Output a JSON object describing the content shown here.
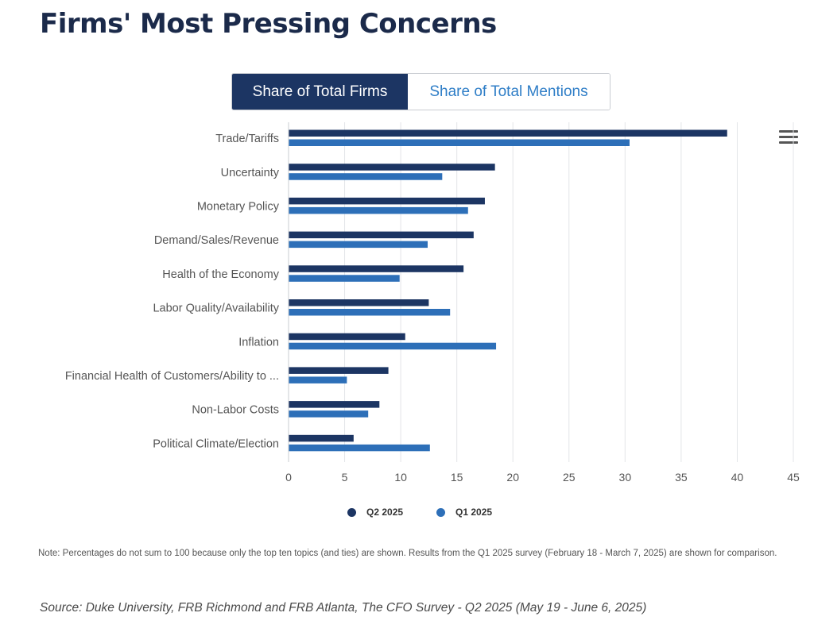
{
  "title": "Firms' Most Pressing Concerns",
  "toggle": {
    "active_label": "Share of Total Firms",
    "inactive_label": "Share of Total Mentions"
  },
  "menu": {
    "icon": "hamburger-menu-icon"
  },
  "colors": {
    "q2": "#1c3563",
    "q1": "#2d6fb8",
    "title": "#1b2a4a",
    "toggle_active": "#1c3563",
    "toggle_link": "#2f7ec7"
  },
  "legend": [
    {
      "label": "Q2 2025",
      "color": "#1c3563"
    },
    {
      "label": "Q1 2025",
      "color": "#2d6fb8"
    }
  ],
  "note": "Note: Percentages do not sum to 100 because only the top ten topics (and ties) are shown. Results from the Q1 2025 survey (February 18 - March 7, 2025) are shown for comparison.",
  "source": "Source: Duke University, FRB Richmond and FRB Atlanta, The CFO Survey - Q2 2025 (May 19 - June 6, 2025)",
  "chart_data": {
    "type": "bar",
    "orientation": "horizontal",
    "categories": [
      "Trade/Tariffs",
      "Uncertainty",
      "Monetary Policy",
      "Demand/Sales/Revenue",
      "Health of the Economy",
      "Labor Quality/Availability",
      "Inflation",
      "Financial Health of Customers/Ability to ...",
      "Non-Labor Costs",
      "Political Climate/Election"
    ],
    "series": [
      {
        "name": "Q2 2025",
        "values": [
          39.1,
          18.4,
          17.5,
          16.5,
          15.6,
          12.5,
          10.4,
          8.9,
          8.1,
          5.8
        ]
      },
      {
        "name": "Q1 2025",
        "values": [
          30.4,
          13.7,
          16.0,
          12.4,
          9.9,
          14.4,
          18.5,
          5.2,
          7.1,
          12.6
        ]
      }
    ],
    "xlim": [
      0,
      45
    ],
    "xticks": [
      "0",
      "5",
      "10",
      "15",
      "20",
      "25",
      "30",
      "35",
      "40",
      "45"
    ],
    "grid": "vertical",
    "legend_position": "bottom-center"
  }
}
